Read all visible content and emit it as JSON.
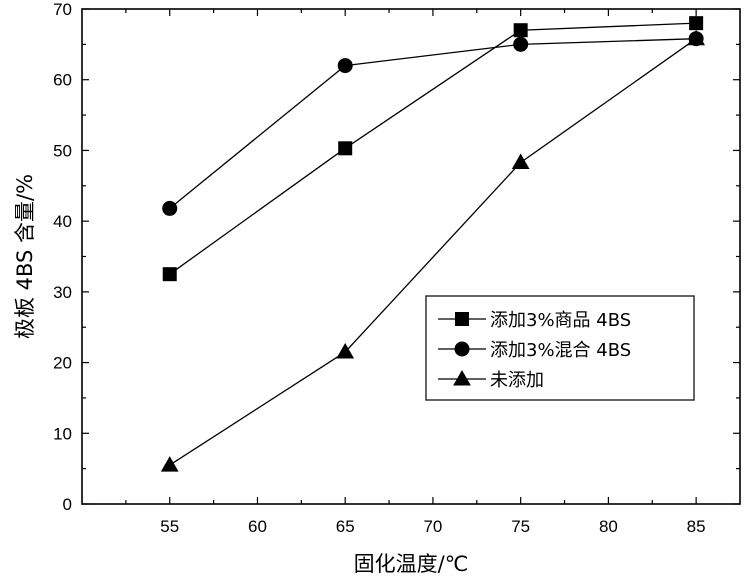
{
  "chart_data": {
    "type": "line",
    "title": "",
    "xlabel": "固化温度/℃",
    "ylabel": "极板 4BS 含量/%",
    "xlim": [
      50,
      87.5
    ],
    "ylim": [
      0,
      70
    ],
    "x_ticks": [
      55,
      60,
      65,
      70,
      75,
      80,
      85
    ],
    "y_ticks": [
      0,
      10,
      20,
      30,
      40,
      50,
      60,
      70
    ],
    "grid": false,
    "legend_position": "center-right",
    "series": [
      {
        "name": "添加3%商品 4BS",
        "marker": "square",
        "x": [
          55,
          65,
          75,
          85
        ],
        "values": [
          32.5,
          50.3,
          67.0,
          68.0
        ]
      },
      {
        "name": "添加3%混合 4BS",
        "marker": "circle",
        "x": [
          55,
          65,
          75,
          85
        ],
        "values": [
          41.8,
          62.0,
          65.0,
          65.8
        ]
      },
      {
        "name": "未添加",
        "marker": "triangle",
        "x": [
          55,
          65,
          75,
          85
        ],
        "values": [
          5.5,
          21.5,
          48.3,
          65.8
        ]
      }
    ]
  }
}
